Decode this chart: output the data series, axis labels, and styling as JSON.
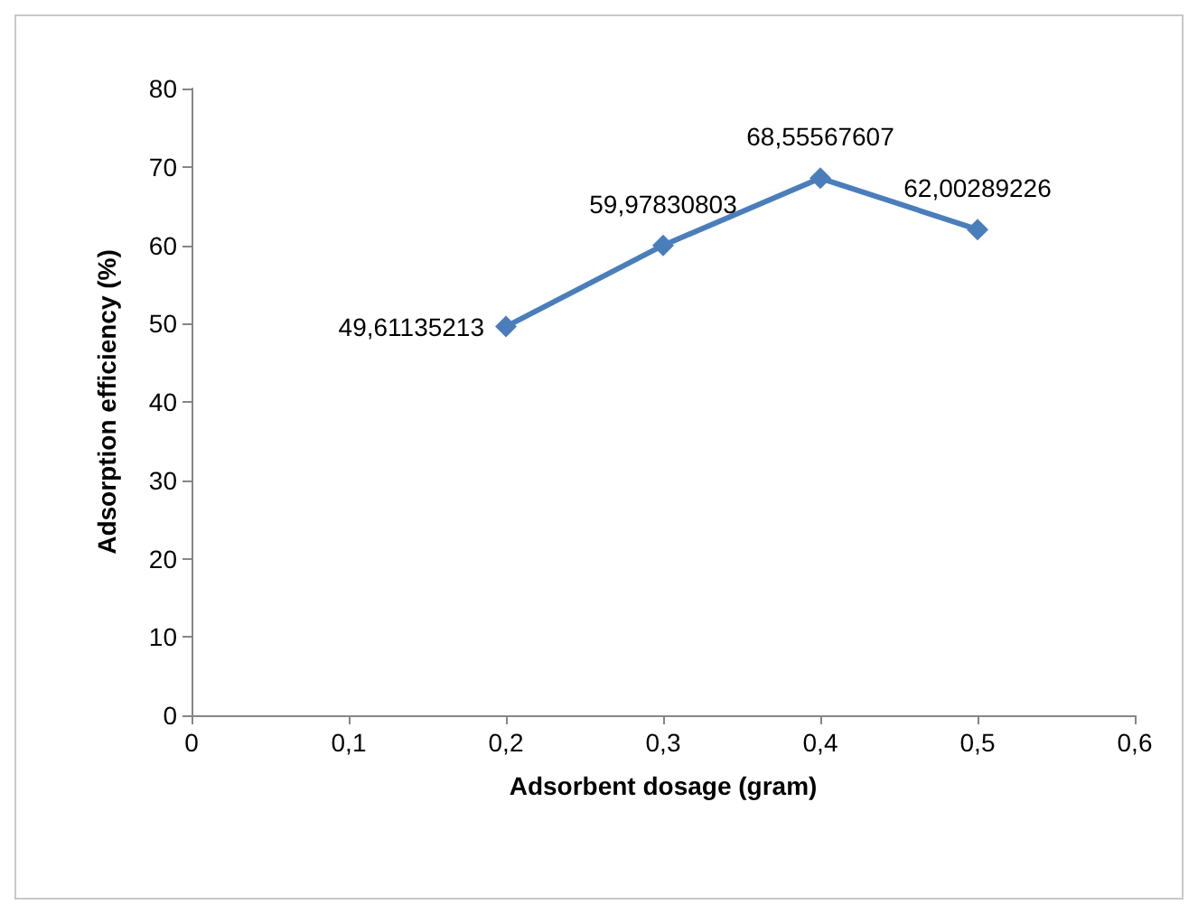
{
  "chart_data": {
    "type": "line",
    "xlabel": "Adsorbent dosage (gram)",
    "ylabel": "Adsorption efficiency (%)",
    "x": [
      0.2,
      0.3,
      0.4,
      0.5
    ],
    "series": [
      {
        "color": "#4a7ebb",
        "values": [
          49.61135213,
          59.97830803,
          68.55567607,
          62.00289226
        ],
        "value_labels": [
          "49,61135213",
          "59,97830803",
          "68,55567607",
          "62,00289226"
        ]
      }
    ],
    "xlim": [
      0,
      0.6
    ],
    "xticks": [
      {
        "value": 0,
        "label": "0"
      },
      {
        "value": 0.1,
        "label": "0,1"
      },
      {
        "value": 0.2,
        "label": "0,2"
      },
      {
        "value": 0.3,
        "label": "0,3"
      },
      {
        "value": 0.4,
        "label": "0,4"
      },
      {
        "value": 0.5,
        "label": "0,5"
      },
      {
        "value": 0.6,
        "label": "0,6"
      }
    ],
    "ylim": [
      0,
      80
    ],
    "yticks": [
      0,
      10,
      20,
      30,
      40,
      50,
      60,
      70,
      80
    ],
    "grid": false,
    "marker": "diamond",
    "line_style": "solid"
  }
}
